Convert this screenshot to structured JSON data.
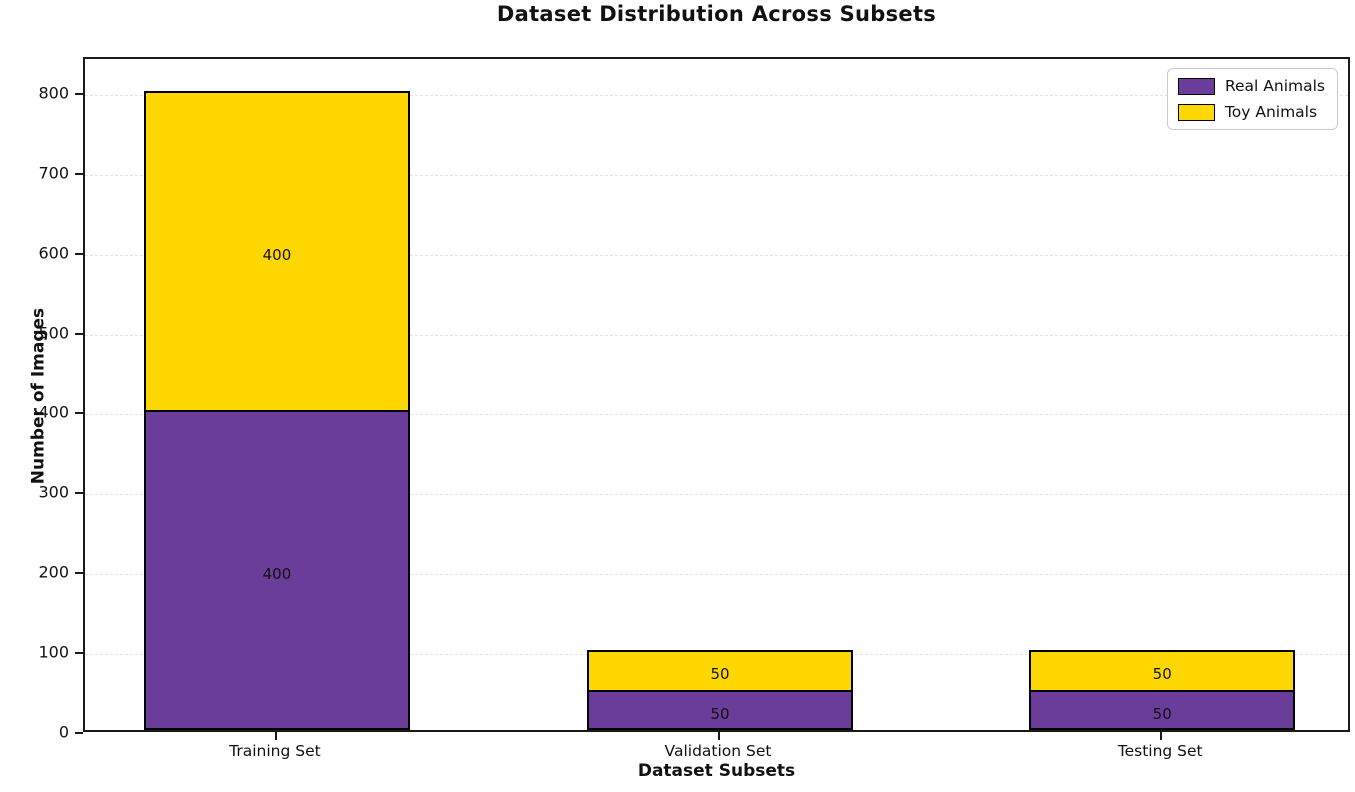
{
  "chart_data": {
    "type": "bar",
    "stacked": true,
    "title": "Dataset Distribution Across Subsets",
    "xlabel": "Dataset Subsets",
    "ylabel": "Number of Images",
    "categories": [
      "Training Set",
      "Validation Set",
      "Testing Set"
    ],
    "series": [
      {
        "name": "Real Animals",
        "color": "#6A3D9A",
        "values": [
          400,
          50,
          50
        ]
      },
      {
        "name": "Toy Animals",
        "color": "#FFD700",
        "values": [
          400,
          50,
          50
        ]
      }
    ],
    "segment_labels": [
      [
        "400",
        "50",
        "50"
      ],
      [
        "400",
        "50",
        "50"
      ]
    ],
    "totals": [
      800,
      100,
      100
    ],
    "yticks": [
      "0",
      "100",
      "200",
      "300",
      "400",
      "500",
      "600",
      "700",
      "800"
    ],
    "ylim": [
      0,
      845
    ],
    "grid": "horizontal-dashed",
    "gridline_color": "#e2e2e2",
    "edge_color": "#000000",
    "legend_position": "upper-right"
  }
}
